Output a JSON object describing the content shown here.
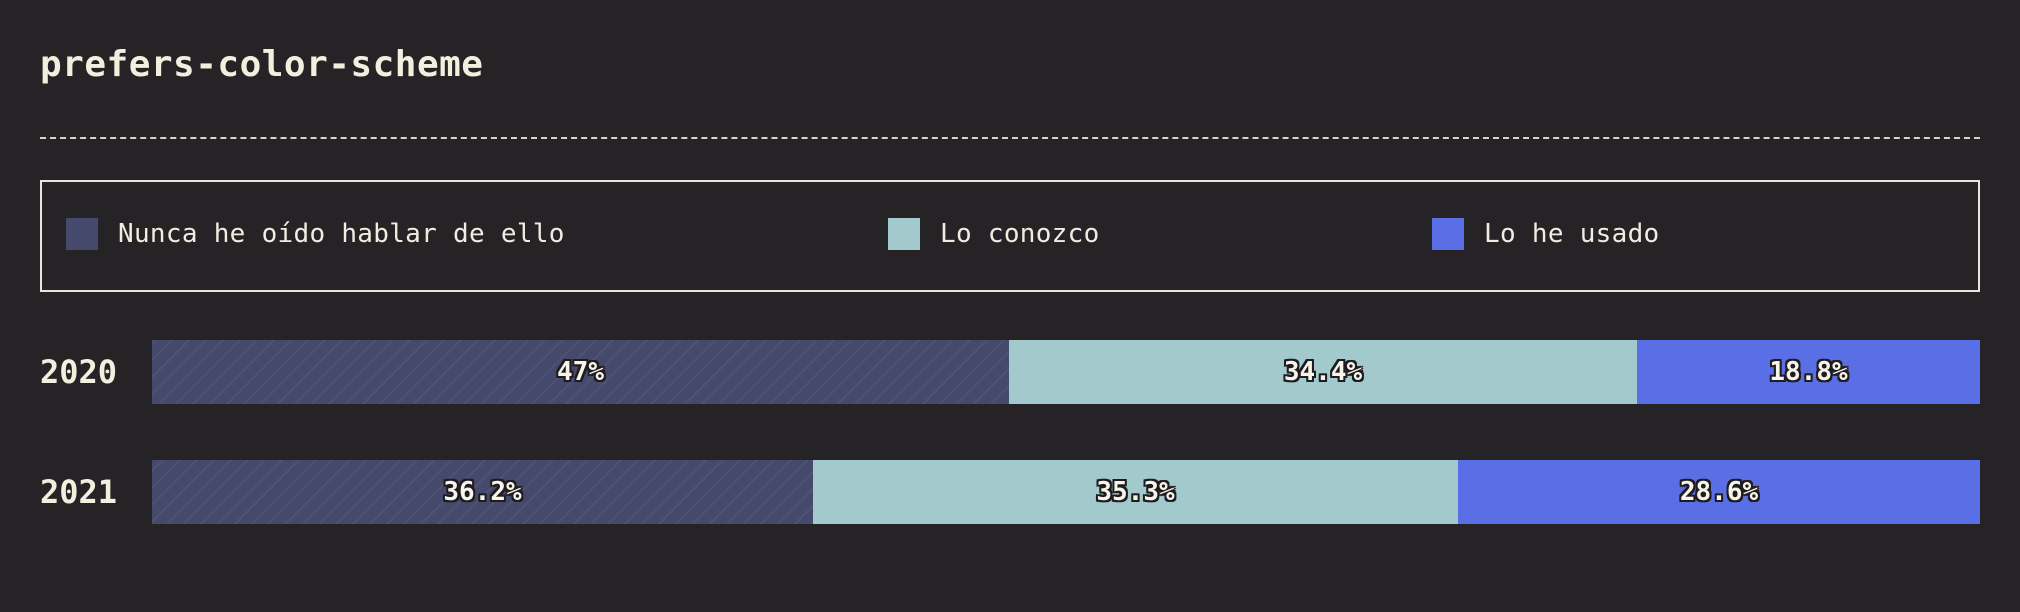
{
  "title": "prefers-color-scheme",
  "legend": [
    {
      "label": "Nunca he oído hablar de ello",
      "color": "#454a6d"
    },
    {
      "label": "Lo conozco",
      "color": "#a2c9cb"
    },
    {
      "label": "Lo he usado",
      "color": "#5a6fe6"
    }
  ],
  "chart_data": {
    "type": "bar",
    "orientation": "horizontal",
    "stacked": true,
    "normalized": true,
    "categories": [
      "2020",
      "2021"
    ],
    "series": [
      {
        "name": "Nunca he oído hablar de ello",
        "values": [
          47,
          36.2
        ],
        "labels": [
          "47%",
          "36.2%"
        ]
      },
      {
        "name": "Lo conozco",
        "values": [
          34.4,
          35.3
        ],
        "labels": [
          "34.4%",
          "35.3%"
        ]
      },
      {
        "name": "Lo he usado",
        "values": [
          18.8,
          28.6
        ],
        "labels": [
          "18.8%",
          "28.6%"
        ]
      }
    ],
    "title": "prefers-color-scheme",
    "xlim": [
      0,
      100
    ],
    "legend_position": "top",
    "grid": false
  }
}
